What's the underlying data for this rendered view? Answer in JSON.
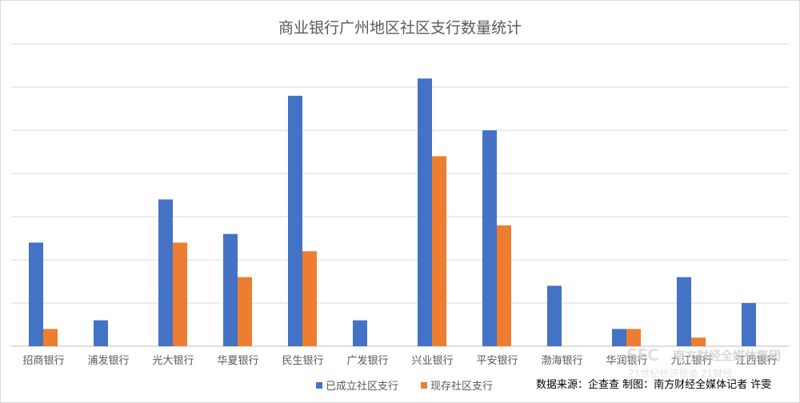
{
  "chart_data": {
    "type": "bar",
    "title": "商业银行广州地区社区支行数量统计",
    "categories": [
      "招商银行",
      "浦发银行",
      "光大银行",
      "华夏银行",
      "民生银行",
      "广发银行",
      "兴业银行",
      "平安银行",
      "渤海银行",
      "华润银行",
      "九江银行",
      "江西银行"
    ],
    "series": [
      {
        "name": "已成立社区支行",
        "color": "#4472C4",
        "values": [
          12,
          3,
          17,
          13,
          29,
          3,
          31,
          25,
          7,
          2,
          8,
          5
        ]
      },
      {
        "name": "现存社区支行",
        "color": "#ED7D31",
        "values": [
          2,
          0,
          12,
          8,
          11,
          0,
          22,
          14,
          0,
          2,
          1,
          0
        ]
      }
    ],
    "ylim": [
      0,
      35
    ],
    "y_tick_step": 5,
    "grid": true,
    "legend_position": "bottom",
    "xlabel": "",
    "ylabel": ""
  },
  "source_note": "数据来源：企查查   制图：南方财经全媒体记者 许雯",
  "watermark": {
    "logo": "SFC",
    "org": "南方财经全媒体集团",
    "sub": "21世纪经济报道 21财经"
  }
}
